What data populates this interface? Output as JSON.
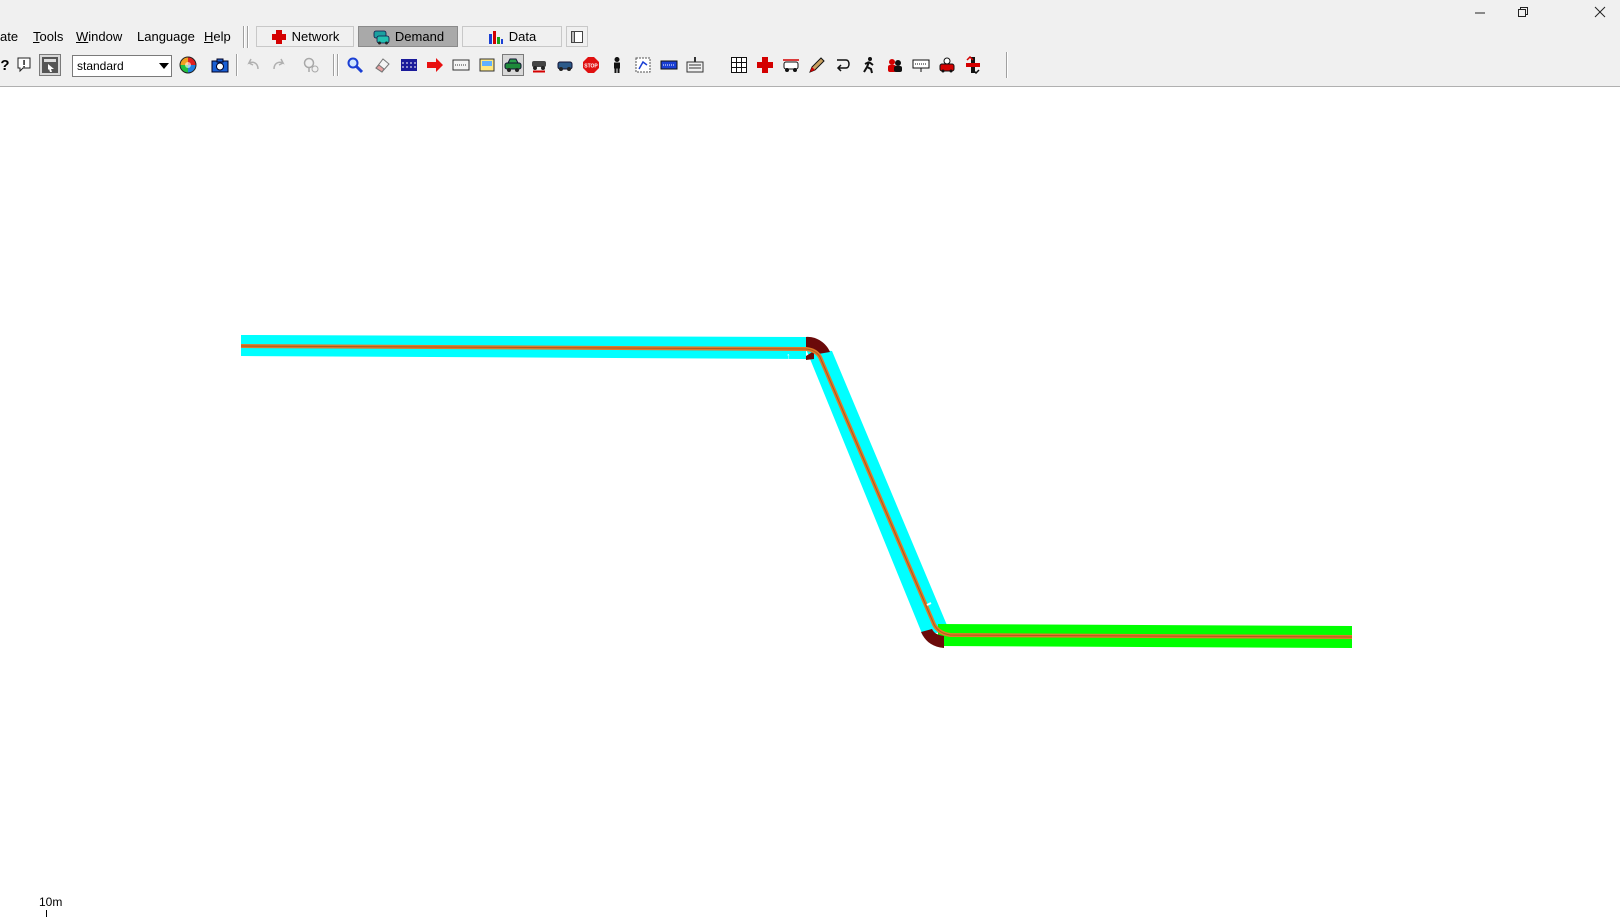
{
  "menu": {
    "items": [
      "ate",
      "Tools",
      "Window",
      "Language",
      "Help"
    ],
    "mnemonics": [
      "",
      "T",
      "W",
      "",
      "H"
    ]
  },
  "modes": {
    "network": "Network",
    "demand": "Demand",
    "data": "Data",
    "active": "Demand"
  },
  "toolbar": {
    "scheme_value": "standard",
    "icons": [
      "help-icon",
      "info-icon",
      "menu-icon",
      "scheme-select",
      "color-wheel-icon",
      "camera-icon",
      "undo-icon",
      "redo-icon",
      "locate-icon",
      "search-icon",
      "eraser-icon",
      "lanes-icon",
      "arrow-right-icon",
      "calibrator-icon",
      "bus-stop-icon",
      "car-icon",
      "vehicle-type-icon",
      "vehicle-icon",
      "stop-sign-icon",
      "person-icon",
      "route-icon",
      "detector-icon",
      "variable-speed-icon",
      "grid-icon",
      "add-icon",
      "container-icon",
      "edit-icon",
      "reroute-icon",
      "walking-icon",
      "persons-icon",
      "display-icon",
      "parking-icon",
      "flow-icon"
    ]
  },
  "canvas": {
    "scale_label": "10m",
    "edge_colors": {
      "edge1": "#00ffff",
      "edge2": "#00ffff",
      "edge3": "#00ff00",
      "route": "#e07a2a",
      "junction": "#6b0a0a"
    }
  },
  "colors": {
    "chrome_bg": "#f0f0f0",
    "active_mode": "#a9a9a9"
  }
}
